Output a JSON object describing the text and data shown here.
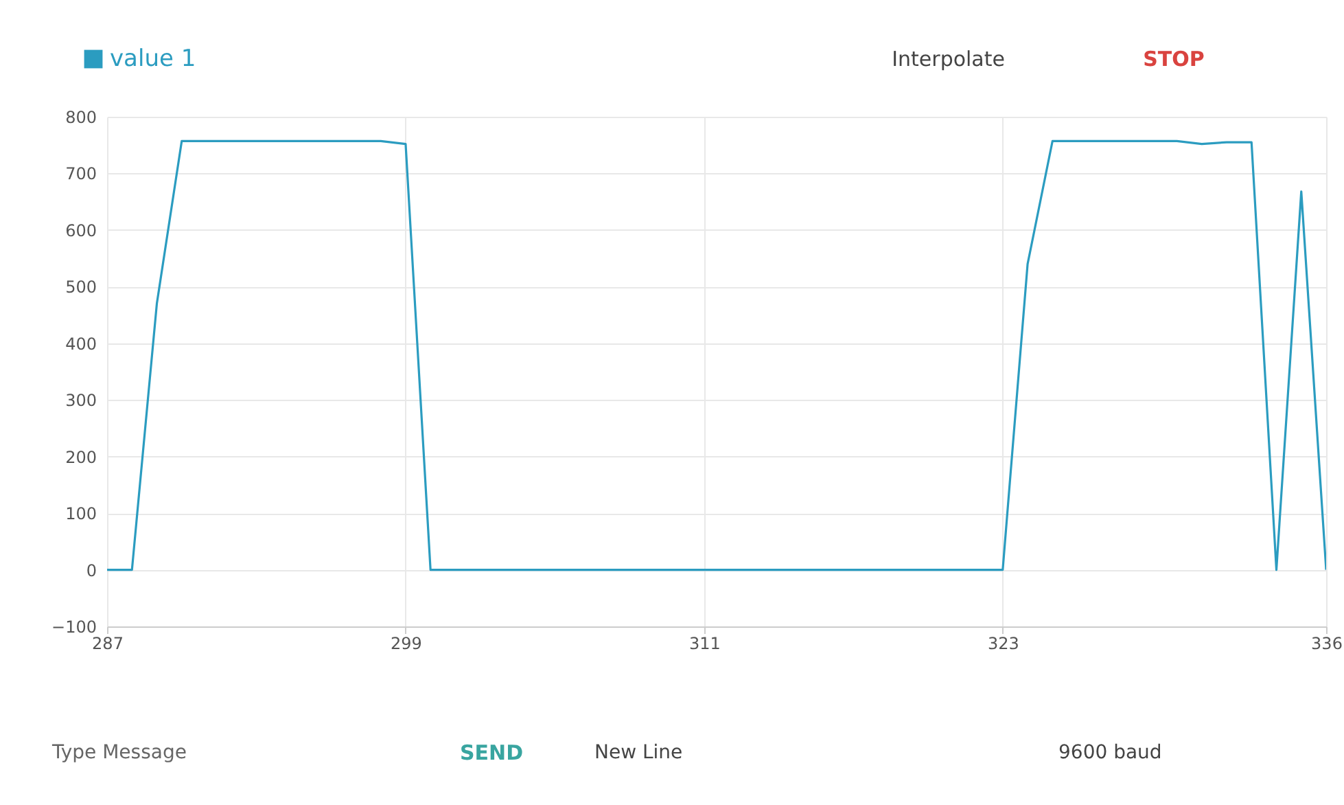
{
  "chart_data": {
    "type": "line",
    "x": [
      287,
      288,
      289,
      290,
      291,
      292,
      293,
      294,
      295,
      296,
      297,
      298,
      299,
      300,
      301,
      302,
      303,
      304,
      305,
      306,
      307,
      308,
      309,
      310,
      311,
      312,
      313,
      314,
      315,
      316,
      317,
      318,
      319,
      320,
      321,
      322,
      323,
      324,
      325,
      326,
      327,
      328,
      329,
      330,
      331,
      332,
      333,
      334,
      335,
      336
    ],
    "series": [
      {
        "name": "value 1",
        "color": "#2b9cc0",
        "values": [
          0,
          0,
          470,
          757,
          757,
          757,
          757,
          757,
          757,
          757,
          757,
          757,
          752,
          0,
          0,
          0,
          0,
          0,
          0,
          0,
          0,
          0,
          0,
          0,
          0,
          0,
          0,
          0,
          0,
          0,
          0,
          0,
          0,
          0,
          0,
          0,
          0,
          540,
          757,
          757,
          757,
          757,
          757,
          757,
          752,
          755,
          755,
          0,
          668,
          0
        ]
      }
    ],
    "xlim": [
      287,
      336
    ],
    "xticks": [
      287,
      299,
      311,
      323,
      336
    ],
    "ylim": [
      -100,
      800
    ],
    "yticks": [
      -100,
      0,
      100,
      200,
      300,
      400,
      500,
      600,
      700,
      800
    ],
    "grid": true,
    "legend": "top left",
    "marker": "none",
    "line_style": "solid",
    "annotations": [
      "Interpolate",
      "STOP",
      "Type Message",
      "SEND",
      "New Line",
      "9600 baud"
    ]
  }
}
